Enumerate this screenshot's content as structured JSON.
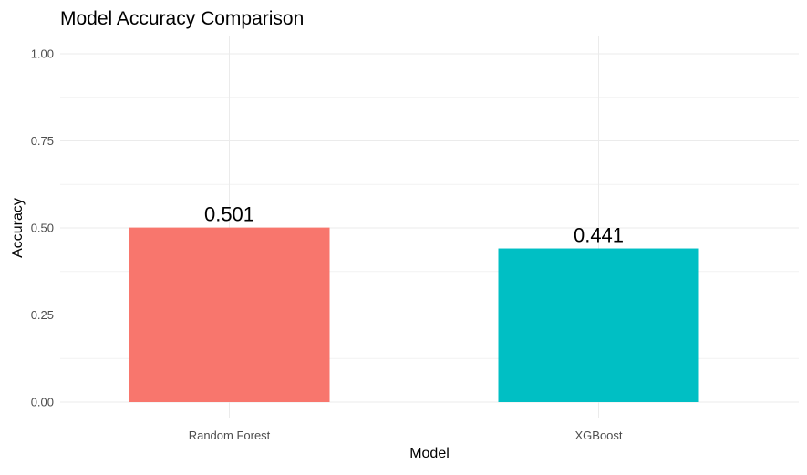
{
  "chart_data": {
    "type": "bar",
    "title": "Model Accuracy Comparison",
    "xlabel": "Model",
    "ylabel": "Accuracy",
    "categories": [
      "Random Forest",
      "XGBoost"
    ],
    "values": [
      0.501,
      0.441
    ],
    "value_labels": [
      "0.501",
      "0.441"
    ],
    "colors": [
      "#F8766D",
      "#00BFC4"
    ],
    "ylim": [
      0,
      1.0
    ],
    "yticks": [
      0.0,
      0.25,
      0.5,
      0.75,
      1.0
    ],
    "ytick_labels": [
      "0.00",
      "0.25",
      "0.50",
      "0.75",
      "1.00"
    ],
    "grid": true,
    "legend": "none"
  }
}
